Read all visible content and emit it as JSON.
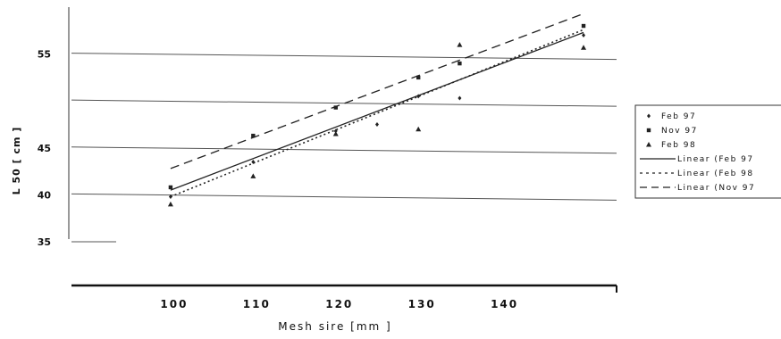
{
  "chart_data": {
    "type": "scatter",
    "title": "",
    "xlabel": "Mesh sire [mm ]",
    "ylabel": "L 50 [ cm ]",
    "xlim": [
      88,
      154
    ],
    "ylim": [
      33,
      60
    ],
    "x_ticks": [
      100,
      110,
      120,
      130,
      140
    ],
    "x_tick_labels": [
      "100",
      "110",
      "120",
      "130",
      "140"
    ],
    "y_ticks": [
      35,
      40,
      45,
      55
    ],
    "y_tick_labels": [
      "35",
      "40",
      "45",
      "55"
    ],
    "grid": true,
    "legend_position": "right",
    "series": [
      {
        "name": "Feb 97",
        "kind": "points",
        "marker": "diamond",
        "color": "#222222",
        "points": [
          [
            100,
            39.8
          ],
          [
            110,
            43.5
          ],
          [
            120,
            46.8
          ],
          [
            125,
            47.5
          ],
          [
            130,
            50.5
          ],
          [
            135,
            50.3
          ],
          [
            150,
            57.0
          ]
        ]
      },
      {
        "name": "Nov 97",
        "kind": "points",
        "marker": "square",
        "color": "#222222",
        "points": [
          [
            100,
            40.8
          ],
          [
            110,
            46.3
          ],
          [
            120,
            49.3
          ],
          [
            130,
            52.5
          ],
          [
            135,
            54.0
          ],
          [
            150,
            58.0
          ]
        ]
      },
      {
        "name": "Feb 98",
        "kind": "points",
        "marker": "triangle",
        "color": "#222222",
        "points": [
          [
            100,
            39.0
          ],
          [
            110,
            42.0
          ],
          [
            120,
            46.5
          ],
          [
            130,
            47.0
          ],
          [
            135,
            56.0
          ],
          [
            150,
            55.7
          ]
        ]
      },
      {
        "name": "Linear (Feb 97",
        "kind": "line",
        "dash": "solid",
        "color": "#222222",
        "points": [
          [
            100,
            40.5
          ],
          [
            150,
            57.3
          ]
        ]
      },
      {
        "name": "Linear (Feb 98",
        "kind": "line",
        "dash": "dotted",
        "color": "#222222",
        "points": [
          [
            100,
            39.8
          ],
          [
            150,
            57.6
          ]
        ]
      },
      {
        "name": "Linear (Nov 97",
        "kind": "line",
        "dash": "dashed",
        "color": "#222222",
        "points": [
          [
            100,
            42.8
          ],
          [
            150,
            59.3
          ]
        ]
      }
    ]
  }
}
